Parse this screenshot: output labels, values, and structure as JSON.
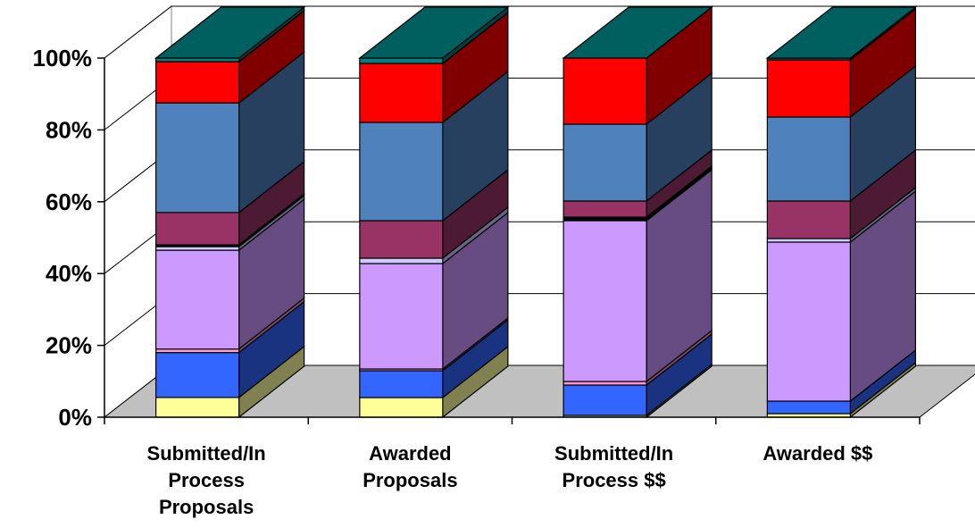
{
  "chart_data": {
    "type": "bar",
    "stacked": "percent",
    "three_d": true,
    "categories": [
      [
        "Submitted/In",
        "Process",
        "Proposals"
      ],
      [
        "Awarded",
        "Proposals"
      ],
      [
        "Submitted/In",
        "Process $$"
      ],
      [
        "Awarded $$"
      ]
    ],
    "y_ticks": [
      "0%",
      "20%",
      "40%",
      "60%",
      "80%",
      "100%"
    ],
    "ylim": [
      0,
      100
    ],
    "grid": true,
    "legend": "none",
    "series": [
      {
        "color": "#FFFF99",
        "side_color": "#808050",
        "values": [
          5.5,
          5.5,
          0.5,
          1
        ]
      },
      {
        "color": "#3366FF",
        "side_color": "#1A3380",
        "values": [
          12.5,
          7.5,
          8.5,
          3.5
        ]
      },
      {
        "color": "#FF99CC",
        "side_color": "#804C66",
        "values": [
          1,
          0.5,
          1,
          0
        ]
      },
      {
        "color": "#CC99FF",
        "side_color": "#664C80",
        "values": [
          27.5,
          29.5,
          45,
          44.5
        ]
      },
      {
        "color": "#CCCCFF",
        "side_color": "#666680",
        "values": [
          1,
          1.5,
          0,
          1
        ]
      },
      {
        "color": "#000000",
        "side_color": "#000000",
        "values": [
          0.5,
          0,
          1,
          0
        ]
      },
      {
        "color": "#993366",
        "side_color": "#4D1A33",
        "values": [
          9,
          10.5,
          4.5,
          10.5
        ]
      },
      {
        "color": "#4F81BD",
        "side_color": "#27405F",
        "values": [
          30.5,
          27.5,
          21.5,
          23.5
        ]
      },
      {
        "color": "#FF0000",
        "side_color": "#800000",
        "values": [
          11.5,
          16.5,
          18.5,
          16
        ]
      },
      {
        "color": "#008080",
        "side_color": "#004040",
        "values": [
          1,
          1.5,
          0,
          0.5
        ]
      }
    ],
    "top_color": "#006060",
    "floor_color": "#C0C0C0",
    "wall_color": "#FFFFFF"
  }
}
